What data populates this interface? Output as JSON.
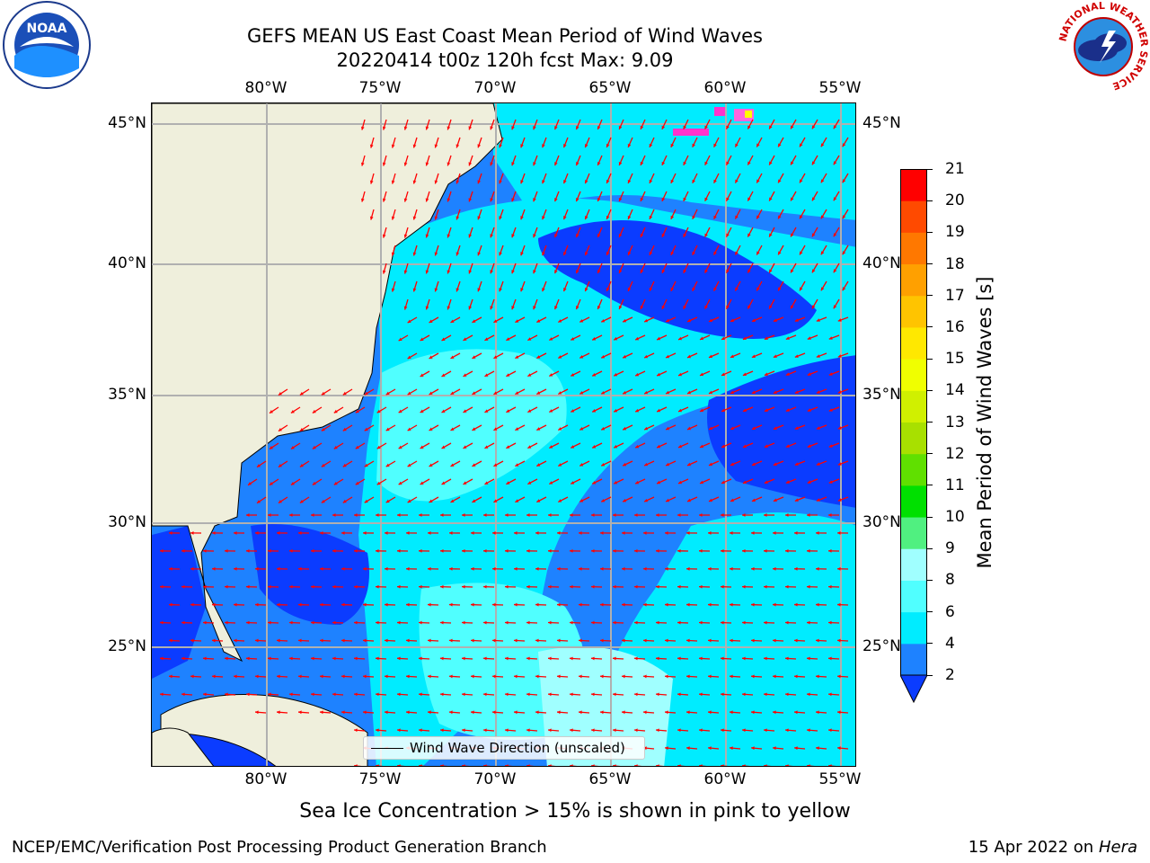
{
  "header": {
    "title_line1": "GEFS MEAN US East Coast Mean Period of Wind Waves",
    "title_line2": "20220414 t00z 120h fcst   Max: 9.09"
  },
  "map": {
    "lon_ticks": [
      "80°W",
      "75°W",
      "70°W",
      "65°W",
      "60°W",
      "55°W"
    ],
    "lat_ticks": [
      "45°N",
      "40°N",
      "35°N",
      "30°N",
      "25°N"
    ],
    "legend_label": "Wind Wave Direction (unscaled)",
    "arrow_color": "#ff0000",
    "land_color": "#efefdc",
    "grid_color": "#b0b0b0"
  },
  "colorbar": {
    "title": "Mean Period of Wind Waves [s]",
    "ticks": [
      "2",
      "4",
      "6",
      "8",
      "9",
      "10",
      "11",
      "12",
      "13",
      "14",
      "15",
      "16",
      "17",
      "18",
      "19",
      "20",
      "21"
    ],
    "colors": [
      "#0b3cff",
      "#1e82ff",
      "#00ecff",
      "#50ffff",
      "#a0ffff",
      "#50f080",
      "#00e000",
      "#60e000",
      "#a8e000",
      "#d0f000",
      "#f0ff00",
      "#ffe800",
      "#ffc400",
      "#ffa000",
      "#ff7800",
      "#ff4a00",
      "#ff0000"
    ]
  },
  "notes": {
    "ice": "Sea Ice Concentration > 15% is shown in pink to yellow"
  },
  "footer": {
    "left": "NCEP/EMC/Verification Post Processing Product Generation Branch",
    "date": "15 Apr 2022 on ",
    "machine": "Hera"
  },
  "logos": {
    "noaa_text": "NOAA",
    "nws_ring": "NATIONAL WEATHER SERVICE"
  }
}
